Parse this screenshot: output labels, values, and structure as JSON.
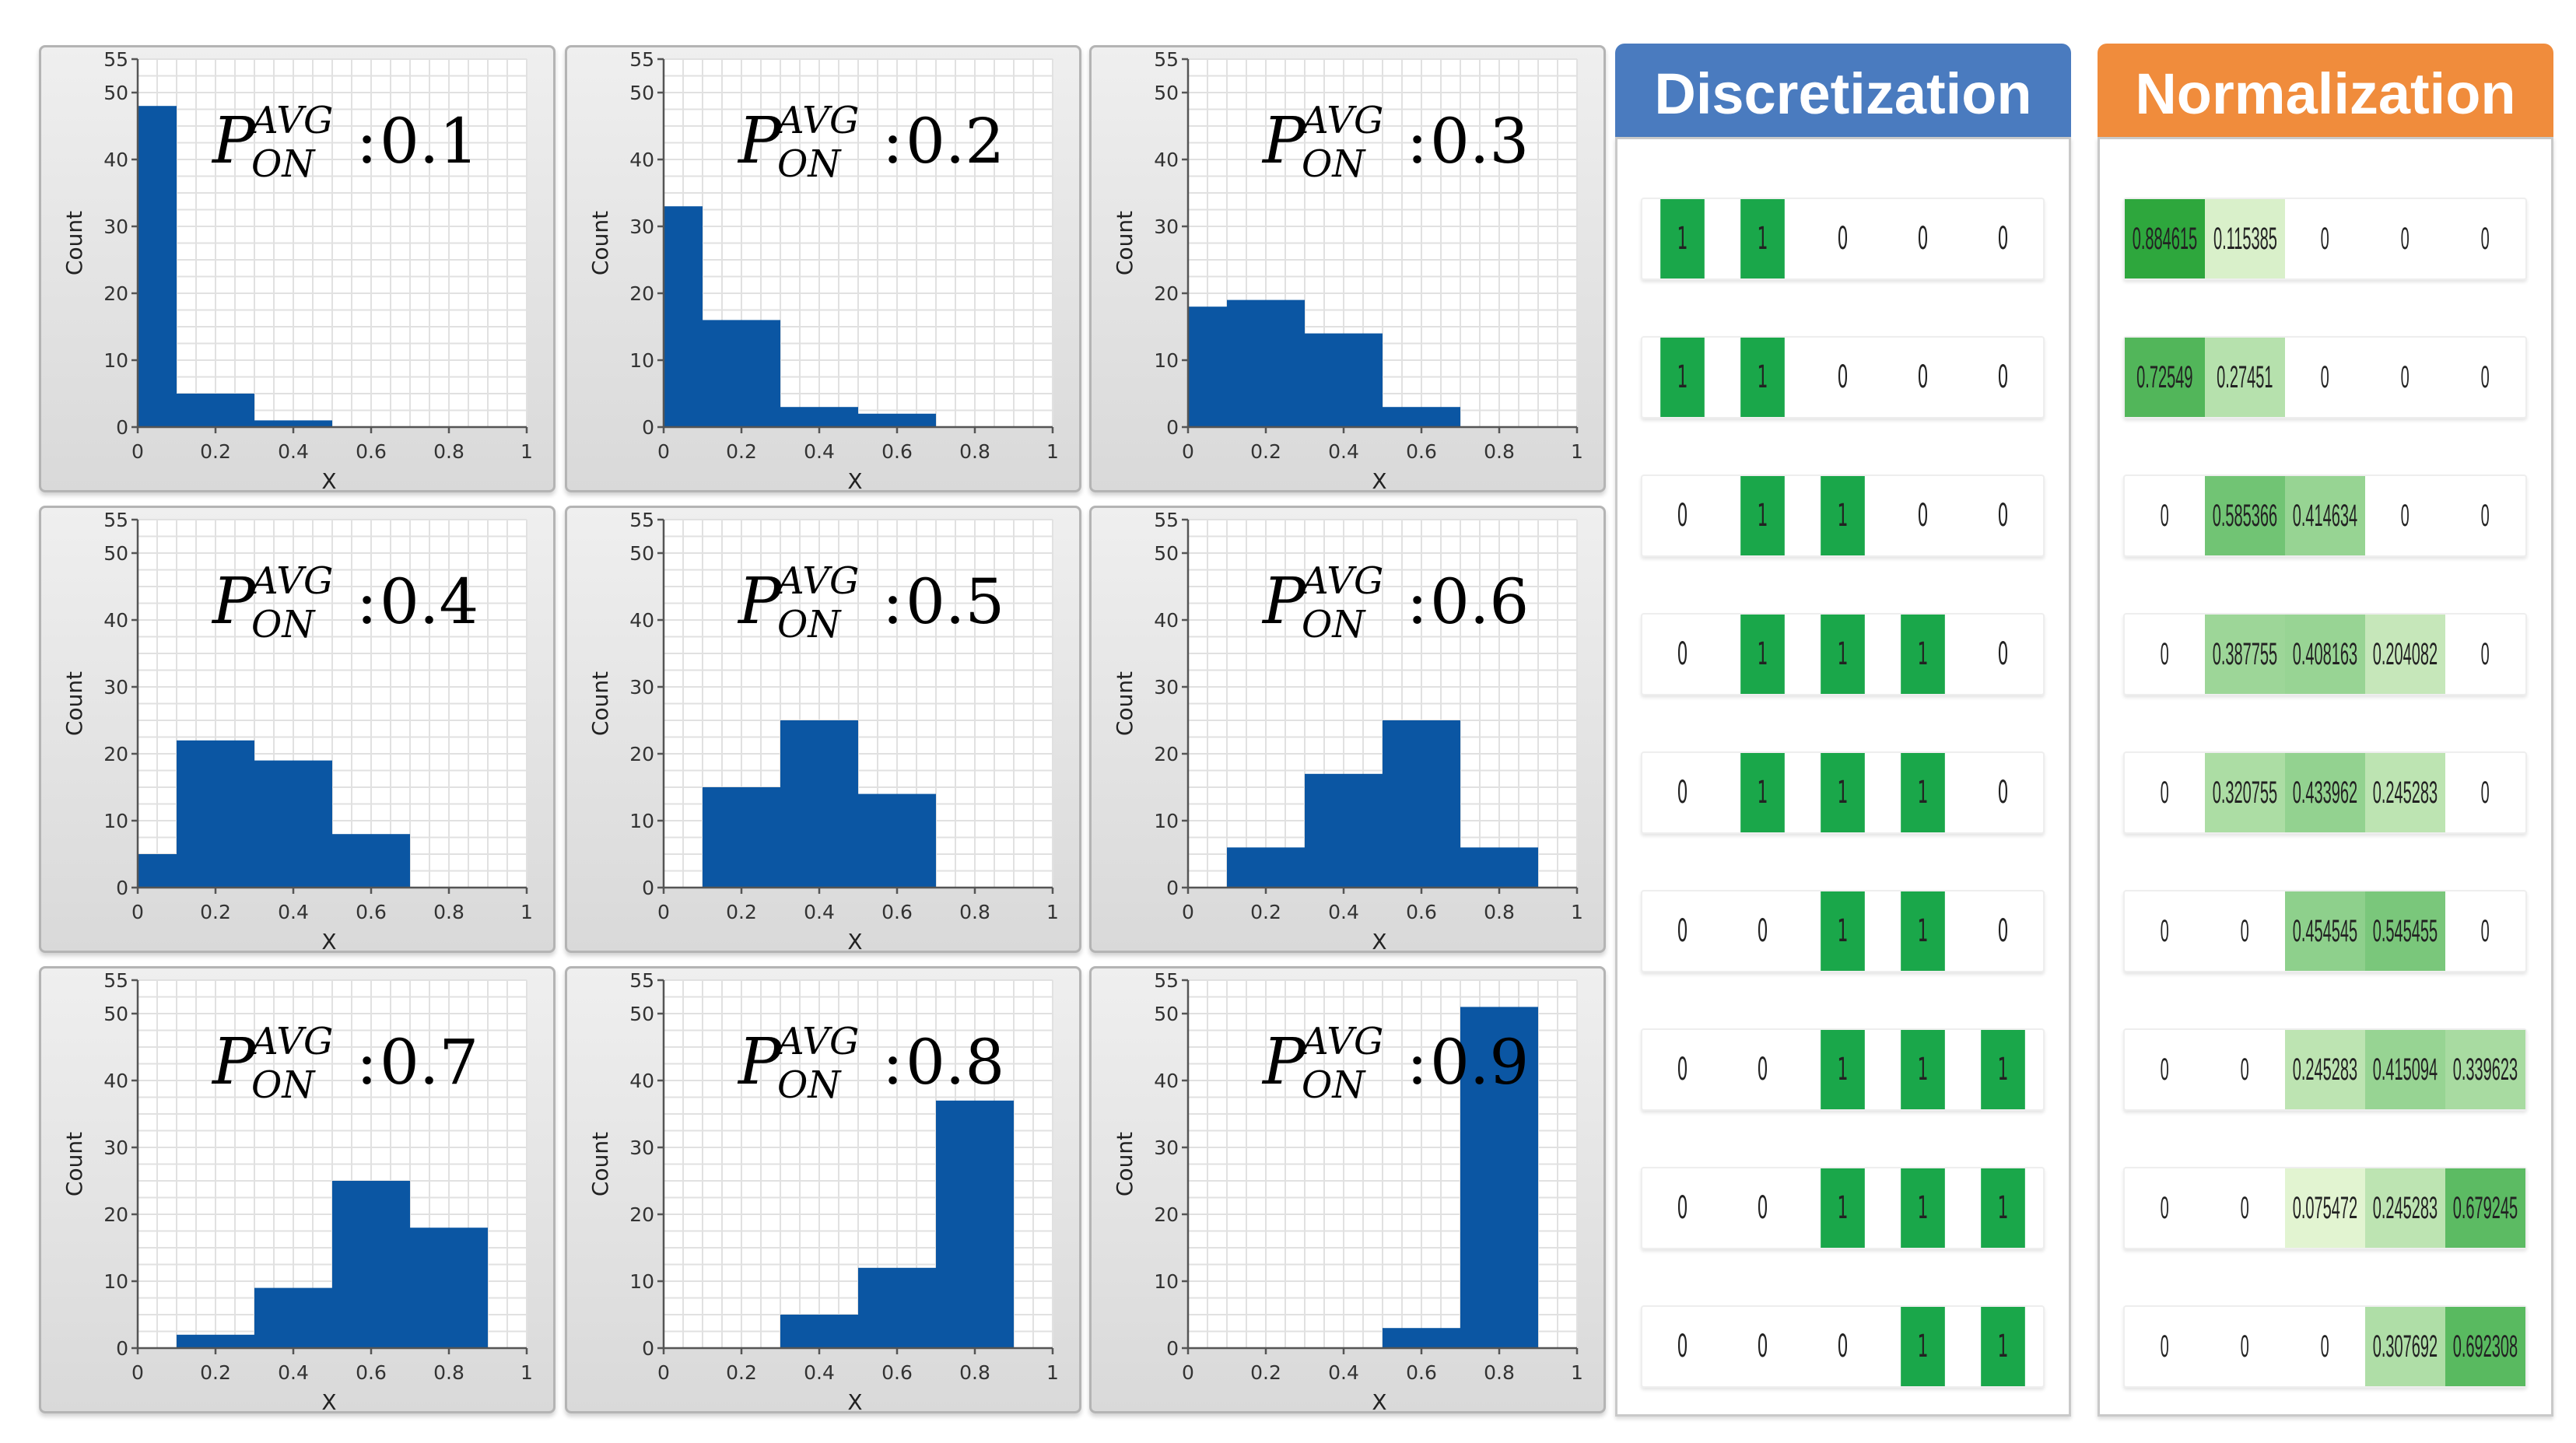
{
  "colors": {
    "bar": "#0b56a3",
    "discretization_header": "#4a7bbf",
    "normalization_header": "#f08c3c",
    "on_green": "#1aa74a"
  },
  "chart_data": [
    {
      "type": "bar",
      "panel": "top-left",
      "annotation": {
        "symbol": "P",
        "superscript": "AVG",
        "subscript": "ON",
        "value": "0.1"
      },
      "xlabel": "X",
      "ylabel": "Count",
      "xlim": [
        0,
        1
      ],
      "ylim": [
        0,
        55
      ],
      "xticks": [
        "0",
        "0.2",
        "0.4",
        "0.6",
        "0.8",
        "1"
      ],
      "yticks": [
        "0",
        "10",
        "20",
        "30",
        "40",
        "50",
        "55"
      ],
      "bin_edges": [
        0,
        0.1,
        0.3,
        0.5,
        0.7,
        0.9
      ],
      "values": [
        48,
        5,
        1,
        0,
        0
      ]
    },
    {
      "type": "bar",
      "panel": "top-middle",
      "annotation": {
        "symbol": "P",
        "superscript": "AVG",
        "subscript": "ON",
        "value": "0.2"
      },
      "xlabel": "X",
      "ylabel": "Count",
      "xlim": [
        0,
        1
      ],
      "ylim": [
        0,
        55
      ],
      "xticks": [
        "0",
        "0.2",
        "0.4",
        "0.6",
        "0.8",
        "1"
      ],
      "yticks": [
        "0",
        "10",
        "20",
        "30",
        "40",
        "50",
        "55"
      ],
      "bin_edges": [
        0,
        0.1,
        0.3,
        0.5,
        0.7,
        0.9
      ],
      "values": [
        33,
        16,
        3,
        2,
        0
      ]
    },
    {
      "type": "bar",
      "panel": "top-right",
      "annotation": {
        "symbol": "P",
        "superscript": "AVG",
        "subscript": "ON",
        "value": "0.3"
      },
      "xlabel": "X",
      "ylabel": "Count",
      "xlim": [
        0,
        1
      ],
      "ylim": [
        0,
        55
      ],
      "xticks": [
        "0",
        "0.2",
        "0.4",
        "0.6",
        "0.8",
        "1"
      ],
      "yticks": [
        "0",
        "10",
        "20",
        "30",
        "40",
        "50",
        "55"
      ],
      "bin_edges": [
        0,
        0.1,
        0.3,
        0.5,
        0.7,
        0.9
      ],
      "values": [
        18,
        19,
        14,
        3,
        0
      ]
    },
    {
      "type": "bar",
      "panel": "middle-left",
      "annotation": {
        "symbol": "P",
        "superscript": "AVG",
        "subscript": "ON",
        "value": "0.4"
      },
      "xlabel": "X",
      "ylabel": "Count",
      "xlim": [
        0,
        1
      ],
      "ylim": [
        0,
        55
      ],
      "xticks": [
        "0",
        "0.2",
        "0.4",
        "0.6",
        "0.8",
        "1"
      ],
      "yticks": [
        "0",
        "10",
        "20",
        "30",
        "40",
        "50",
        "55"
      ],
      "bin_edges": [
        0,
        0.1,
        0.3,
        0.5,
        0.7,
        0.9
      ],
      "values": [
        5,
        22,
        19,
        8,
        0
      ]
    },
    {
      "type": "bar",
      "panel": "center",
      "annotation": {
        "symbol": "P",
        "superscript": "AVG",
        "subscript": "ON",
        "value": "0.5"
      },
      "xlabel": "X",
      "ylabel": "Count",
      "xlim": [
        0,
        1
      ],
      "ylim": [
        0,
        55
      ],
      "xticks": [
        "0",
        "0.2",
        "0.4",
        "0.6",
        "0.8",
        "1"
      ],
      "yticks": [
        "0",
        "10",
        "20",
        "30",
        "40",
        "50",
        "55"
      ],
      "bin_edges": [
        0,
        0.1,
        0.3,
        0.5,
        0.7,
        0.9
      ],
      "values": [
        0,
        15,
        25,
        14,
        0
      ]
    },
    {
      "type": "bar",
      "panel": "middle-right",
      "annotation": {
        "symbol": "P",
        "superscript": "AVG",
        "subscript": "ON",
        "value": "0.6"
      },
      "xlabel": "X",
      "ylabel": "Count",
      "xlim": [
        0,
        1
      ],
      "ylim": [
        0,
        55
      ],
      "xticks": [
        "0",
        "0.2",
        "0.4",
        "0.6",
        "0.8",
        "1"
      ],
      "yticks": [
        "0",
        "10",
        "20",
        "30",
        "40",
        "50",
        "55"
      ],
      "bin_edges": [
        0,
        0.1,
        0.3,
        0.5,
        0.7,
        0.9
      ],
      "values": [
        0,
        6,
        17,
        25,
        6
      ]
    },
    {
      "type": "bar",
      "panel": "bottom-left",
      "annotation": {
        "symbol": "P",
        "superscript": "AVG",
        "subscript": "ON",
        "value": "0.7"
      },
      "xlabel": "X",
      "ylabel": "Count",
      "xlim": [
        0,
        1
      ],
      "ylim": [
        0,
        55
      ],
      "xticks": [
        "0",
        "0.2",
        "0.4",
        "0.6",
        "0.8",
        "1"
      ],
      "yticks": [
        "0",
        "10",
        "20",
        "30",
        "40",
        "50",
        "55"
      ],
      "bin_edges": [
        0,
        0.1,
        0.3,
        0.5,
        0.7,
        0.9
      ],
      "values": [
        0,
        2,
        9,
        25,
        18
      ]
    },
    {
      "type": "bar",
      "panel": "bottom-middle",
      "annotation": {
        "symbol": "P",
        "superscript": "AVG",
        "subscript": "ON",
        "value": "0.8"
      },
      "xlabel": "X",
      "ylabel": "Count",
      "xlim": [
        0,
        1
      ],
      "ylim": [
        0,
        55
      ],
      "xticks": [
        "0",
        "0.2",
        "0.4",
        "0.6",
        "0.8",
        "1"
      ],
      "yticks": [
        "0",
        "10",
        "20",
        "30",
        "40",
        "50",
        "55"
      ],
      "bin_edges": [
        0,
        0.1,
        0.3,
        0.5,
        0.7,
        0.9
      ],
      "values": [
        0,
        0,
        5,
        12,
        37
      ]
    },
    {
      "type": "bar",
      "panel": "bottom-right",
      "annotation": {
        "symbol": "P",
        "superscript": "AVG",
        "subscript": "ON",
        "value": "0.9"
      },
      "xlabel": "X",
      "ylabel": "Count",
      "xlim": [
        0,
        1
      ],
      "ylim": [
        0,
        55
      ],
      "xticks": [
        "0",
        "0.2",
        "0.4",
        "0.6",
        "0.8",
        "1"
      ],
      "yticks": [
        "0",
        "10",
        "20",
        "30",
        "40",
        "50",
        "55"
      ],
      "bin_edges": [
        0,
        0.1,
        0.3,
        0.5,
        0.7,
        0.9
      ],
      "values": [
        0,
        0,
        0,
        3,
        51
      ]
    }
  ],
  "discretization": {
    "title": "Discretization",
    "rows": [
      [
        "1",
        "1",
        "0",
        "0",
        "0"
      ],
      [
        "1",
        "1",
        "0",
        "0",
        "0"
      ],
      [
        "0",
        "1",
        "1",
        "0",
        "0"
      ],
      [
        "0",
        "1",
        "1",
        "1",
        "0"
      ],
      [
        "0",
        "1",
        "1",
        "1",
        "0"
      ],
      [
        "0",
        "0",
        "1",
        "1",
        "0"
      ],
      [
        "0",
        "0",
        "1",
        "1",
        "1"
      ],
      [
        "0",
        "0",
        "1",
        "1",
        "1"
      ],
      [
        "0",
        "0",
        "0",
        "1",
        "1"
      ]
    ]
  },
  "normalization": {
    "title": "Normalization",
    "rows": [
      [
        "0.884615",
        "0.115385",
        "0",
        "0",
        "0"
      ],
      [
        "0.72549",
        "0.27451",
        "0",
        "0",
        "0"
      ],
      [
        "0",
        "0.585366",
        "0.414634",
        "0",
        "0"
      ],
      [
        "0",
        "0.387755",
        "0.408163",
        "0.204082",
        "0"
      ],
      [
        "0",
        "0.320755",
        "0.433962",
        "0.245283",
        "0"
      ],
      [
        "0",
        "0",
        "0.454545",
        "0.545455",
        "0"
      ],
      [
        "0",
        "0",
        "0.245283",
        "0.415094",
        "0.339623"
      ],
      [
        "0",
        "0",
        "0.075472",
        "0.245283",
        "0.679245"
      ],
      [
        "0",
        "0",
        "0",
        "0.307692",
        "0.692308"
      ]
    ]
  }
}
